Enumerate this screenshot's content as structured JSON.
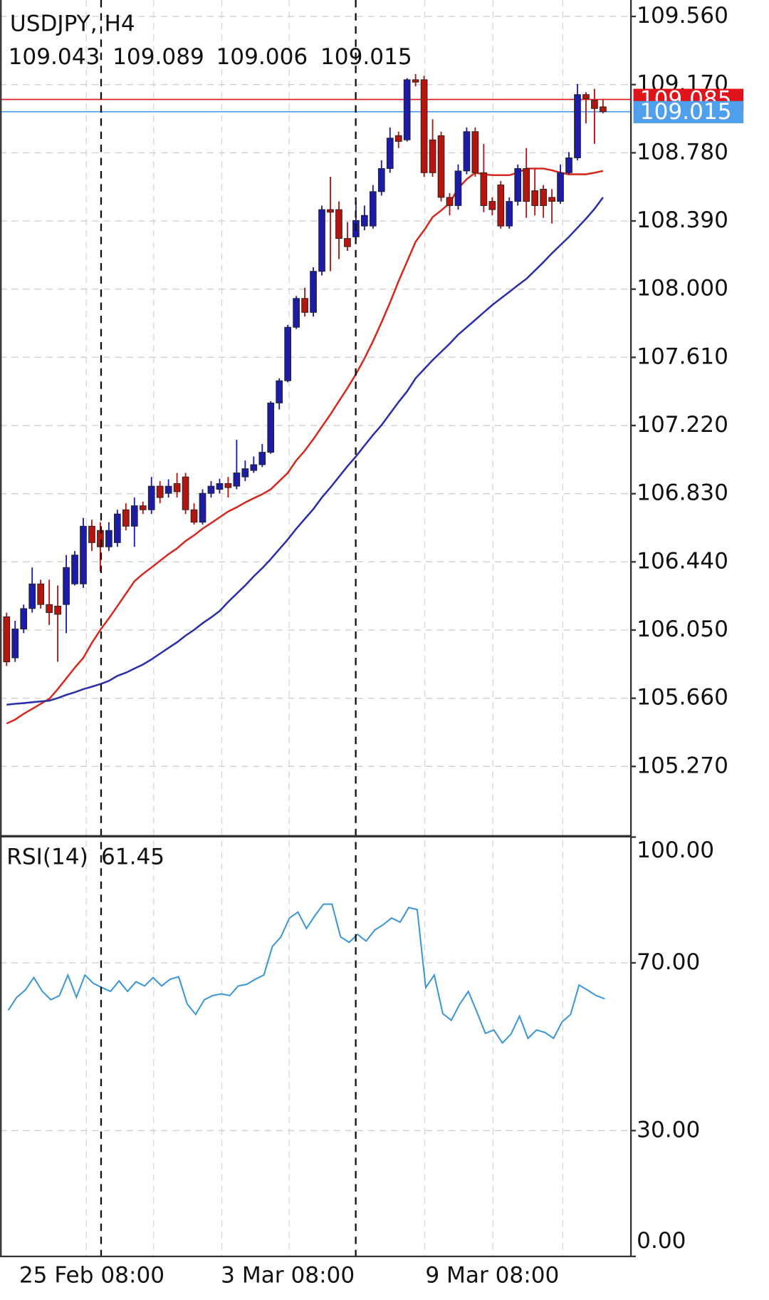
{
  "chart_data": [
    {
      "type": "candlestick",
      "title": "USDJPY, H4",
      "categories": [
        null,
        null,
        null,
        null,
        null,
        null,
        null,
        null,
        null,
        null,
        "25 Feb 08:00",
        null,
        null,
        null,
        null,
        null,
        null,
        null,
        null,
        null,
        null,
        null,
        null,
        null,
        null,
        null,
        null,
        null,
        null,
        null,
        null,
        null,
        null,
        "3 Mar 08:00",
        null,
        null,
        null,
        null,
        null,
        null,
        null,
        null,
        null,
        null,
        null,
        null,
        null,
        null,
        null,
        null,
        null,
        null,
        null,
        null,
        null,
        null,
        null,
        "9 Mar 08:00",
        null,
        null,
        null,
        null,
        null,
        null,
        null,
        null,
        null,
        null,
        null,
        null,
        null
      ],
      "open": [
        106.126,
        105.891,
        106.056,
        106.173,
        106.314,
        106.196,
        106.187,
        106.196,
        106.314,
        106.314,
        106.644,
        106.62,
        106.526,
        106.55,
        106.738,
        106.644,
        106.761,
        106.738,
        106.873,
        106.832,
        106.888,
        106.926,
        106.738,
        106.667,
        106.832,
        106.855,
        106.888,
        106.873,
        106.926,
        106.963,
        106.996,
        107.067,
        107.349,
        107.476,
        107.782,
        107.947,
        107.867,
        108.102,
        108.455,
        108.455,
        108.29,
        108.299,
        108.361,
        108.361,
        108.558,
        108.69,
        108.878,
        108.854,
        109.198,
        109.198,
        108.854,
        108.878,
        108.525,
        108.478,
        108.676,
        108.901,
        108.666,
        108.502,
        108.596,
        108.361,
        108.502,
        108.69,
        108.563,
        108.572,
        108.525,
        108.502,
        108.666,
        108.751,
        109.113,
        109.08,
        109.043
      ],
      "high": [
        106.15,
        106.103,
        106.196,
        106.408,
        106.338,
        106.338,
        106.305,
        106.479,
        106.502,
        106.691,
        106.681,
        106.667,
        106.667,
        106.738,
        106.775,
        106.808,
        106.785,
        106.926,
        106.902,
        106.912,
        106.949,
        106.949,
        106.775,
        106.855,
        106.902,
        106.916,
        106.926,
        107.138,
        107.02,
        107.043,
        107.114,
        107.359,
        107.49,
        107.796,
        107.961,
        108.008,
        108.125,
        108.478,
        108.643,
        108.502,
        108.384,
        108.502,
        108.478,
        108.596,
        108.737,
        108.925,
        108.901,
        109.207,
        109.231,
        109.221,
        108.972,
        108.901,
        108.549,
        108.713,
        108.925,
        108.925,
        108.831,
        108.525,
        108.619,
        108.525,
        108.713,
        108.807,
        108.69,
        108.596,
        108.572,
        108.713,
        108.784,
        109.174,
        109.127,
        109.146,
        109.089
      ],
      "low": [
        105.844,
        105.868,
        106.032,
        106.15,
        106.173,
        106.079,
        105.868,
        106.032,
        106.305,
        106.291,
        106.502,
        106.385,
        106.502,
        106.526,
        106.62,
        106.526,
        106.714,
        106.714,
        106.775,
        106.808,
        106.808,
        106.714,
        106.653,
        106.653,
        106.808,
        106.832,
        106.808,
        106.855,
        106.902,
        106.949,
        106.982,
        107.058,
        107.312,
        107.467,
        107.772,
        107.843,
        107.843,
        108.078,
        108.102,
        108.172,
        108.219,
        108.28,
        108.337,
        108.346,
        108.535,
        108.666,
        108.807,
        108.845,
        109.16,
        108.643,
        108.643,
        108.502,
        108.422,
        108.455,
        108.657,
        108.643,
        108.44,
        108.422,
        108.346,
        108.346,
        108.478,
        108.408,
        108.422,
        108.408,
        108.375,
        108.488,
        108.657,
        108.737,
        108.948,
        108.831,
        109.006
      ],
      "close": [
        105.868,
        106.056,
        106.173,
        106.314,
        106.196,
        106.15,
        106.14,
        106.408,
        106.479,
        106.644,
        106.55,
        106.526,
        106.62,
        106.714,
        106.644,
        106.761,
        106.738,
        106.873,
        106.808,
        106.873,
        106.841,
        106.738,
        106.667,
        106.832,
        106.873,
        106.888,
        106.865,
        106.949,
        106.973,
        106.996,
        107.067,
        107.349,
        107.476,
        107.782,
        107.947,
        107.867,
        108.102,
        108.455,
        108.44,
        108.29,
        108.243,
        108.393,
        108.422,
        108.558,
        108.69,
        108.864,
        108.845,
        109.198,
        109.184,
        108.666,
        108.666,
        108.525,
        108.478,
        108.676,
        108.901,
        108.666,
        108.478,
        108.455,
        108.361,
        108.502,
        108.69,
        108.502,
        108.478,
        108.478,
        108.502,
        108.666,
        108.751,
        109.113,
        109.09,
        109.033,
        109.015
      ],
      "up_color": "#1c1ca6",
      "down_color": "#b3160f",
      "overlays": [
        {
          "color": "#d42a22",
          "values": [
            105.515,
            105.538,
            105.571,
            105.599,
            105.628,
            105.656,
            105.712,
            105.773,
            105.835,
            105.891,
            105.976,
            106.051,
            106.117,
            106.187,
            106.258,
            106.329,
            106.371,
            106.408,
            106.446,
            106.484,
            106.517,
            106.559,
            106.592,
            106.63,
            106.662,
            106.695,
            106.728,
            106.752,
            106.78,
            106.804,
            106.827,
            106.855,
            106.902,
            106.949,
            107.02,
            107.076,
            107.142,
            107.213,
            107.283,
            107.359,
            107.434,
            107.514,
            107.603,
            107.702,
            107.81,
            107.923,
            108.045,
            108.158,
            108.271,
            108.337,
            108.412,
            108.45,
            108.492,
            108.577,
            108.629,
            108.666,
            108.657,
            108.652,
            108.652,
            108.652,
            108.666,
            108.69,
            108.69,
            108.69,
            108.68,
            108.666,
            108.657,
            108.657,
            108.657,
            108.666,
            108.676
          ]
        },
        {
          "color": "#2b2fa8",
          "values": [
            105.623,
            105.628,
            105.632,
            105.637,
            105.642,
            105.646,
            105.661,
            105.679,
            105.694,
            105.712,
            105.726,
            105.741,
            105.759,
            105.788,
            105.806,
            105.83,
            105.853,
            105.882,
            105.915,
            105.948,
            105.98,
            106.018,
            106.051,
            106.089,
            106.122,
            106.159,
            106.211,
            106.258,
            106.305,
            106.357,
            106.404,
            106.456,
            106.512,
            106.568,
            106.63,
            106.686,
            106.742,
            106.808,
            106.865,
            106.926,
            106.987,
            107.043,
            107.105,
            107.166,
            107.222,
            107.288,
            107.354,
            107.415,
            107.49,
            107.542,
            107.594,
            107.641,
            107.688,
            107.74,
            107.782,
            107.824,
            107.867,
            107.909,
            107.947,
            107.984,
            108.022,
            108.059,
            108.106,
            108.154,
            108.205,
            108.252,
            108.299,
            108.351,
            108.403,
            108.459,
            108.525
          ]
        }
      ],
      "price_lines": [
        {
          "value": 109.085,
          "color": "#e0121a"
        },
        {
          "value": 109.015,
          "color": "#4f9fec"
        }
      ],
      "ylim": [
        104.88,
        109.654
      ],
      "yticks": [
        {
          "value": 109.56,
          "label": "109.560"
        },
        {
          "value": 109.17,
          "label": "109.170"
        },
        {
          "value": 108.78,
          "label": "108.780"
        },
        {
          "value": 108.39,
          "label": "108.390"
        },
        {
          "value": 108.0,
          "label": "108.000"
        },
        {
          "value": 107.61,
          "label": "107.610"
        },
        {
          "value": 107.22,
          "label": "107.220"
        },
        {
          "value": 106.83,
          "label": "106.830"
        },
        {
          "value": 106.44,
          "label": "106.440"
        },
        {
          "value": 106.05,
          "label": "106.050"
        },
        {
          "value": 105.66,
          "label": "105.660"
        },
        {
          "value": 105.27,
          "label": "105.270"
        }
      ],
      "grid": true
    },
    {
      "type": "line",
      "title": "RSI(14)",
      "color": "#3f97d6",
      "values": [
        58.7,
        61.8,
        63.5,
        66.5,
        63.2,
        61.2,
        62.2,
        67.1,
        61.8,
        67.1,
        65.1,
        64.1,
        63.2,
        65.7,
        63.2,
        65.5,
        64.5,
        66.5,
        64.5,
        66.1,
        66.7,
        60.2,
        57.7,
        61.2,
        62.2,
        62.6,
        62.2,
        64.5,
        64.9,
        66.1,
        67.1,
        73.9,
        76.2,
        80.7,
        82.1,
        78.2,
        81.3,
        84.0,
        84.0,
        76.2,
        74.9,
        76.8,
        75.2,
        77.8,
        79.1,
        80.7,
        79.7,
        83.2,
        82.7,
        64.1,
        67.1,
        57.9,
        56.3,
        60.2,
        63.2,
        58.3,
        53.2,
        54.0,
        50.9,
        53.0,
        57.3,
        52.0,
        54.0,
        53.4,
        52.0,
        55.9,
        57.7,
        64.7,
        63.5,
        62.2,
        61.45
      ],
      "ylim": [
        0,
        100
      ],
      "yticks": [
        {
          "value": 100,
          "label": "100.00"
        },
        {
          "value": 70,
          "label": "70.00"
        },
        {
          "value": 30,
          "label": "30.00"
        },
        {
          "value": 0,
          "label": "0.00"
        }
      ],
      "grid": true
    }
  ]
}
